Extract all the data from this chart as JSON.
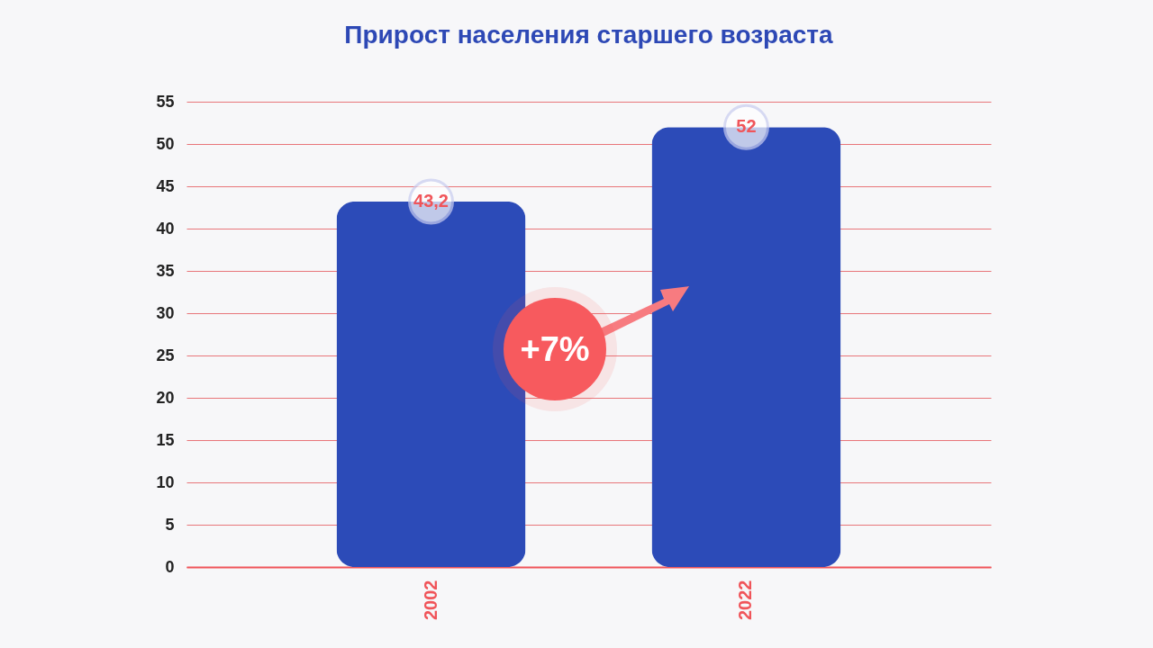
{
  "chart_data": {
    "type": "bar",
    "title": "Прирост населения старшего возраста",
    "categories": [
      "2002",
      "2022"
    ],
    "values": [
      43.2,
      52
    ],
    "value_labels": [
      "43,2",
      "52"
    ],
    "color": "#2c4bb8",
    "ylim": [
      0,
      55
    ],
    "yticks": [
      0,
      5,
      10,
      15,
      20,
      25,
      30,
      35,
      40,
      45,
      50,
      55
    ],
    "grid": "y",
    "annotations": [
      "+7%"
    ]
  }
}
